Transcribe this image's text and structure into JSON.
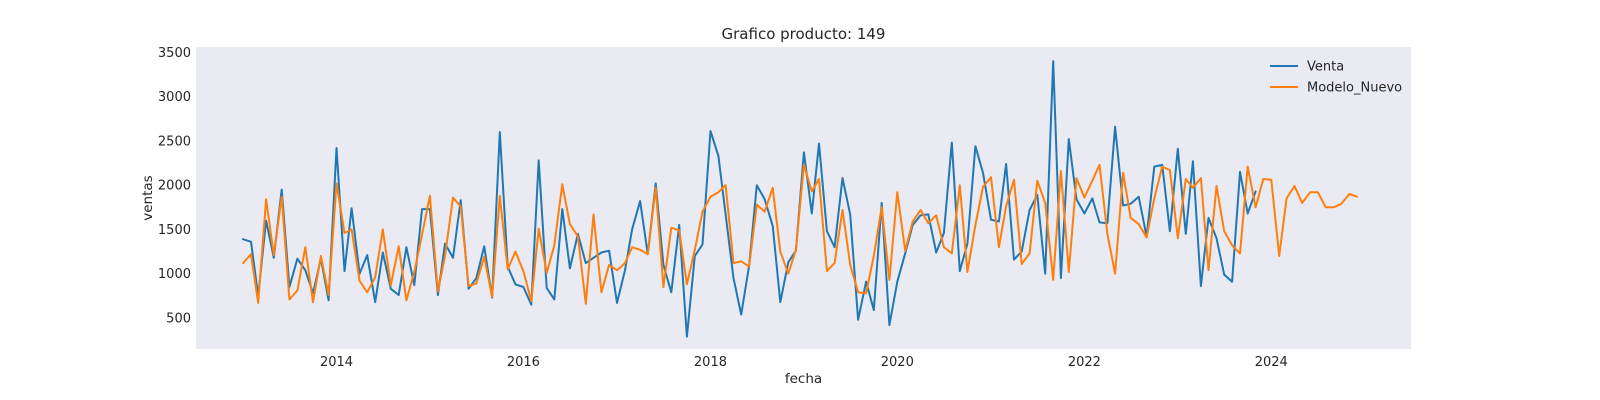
{
  "chart_data": {
    "type": "line",
    "title": "Grafico producto: 149",
    "xlabel": "fecha",
    "ylabel": "ventas",
    "xlim": [
      "2012-07-01",
      "2025-06-30"
    ],
    "ylim": [
      150,
      3560
    ],
    "x_ticks": [
      "2014",
      "2016",
      "2018",
      "2020",
      "2022",
      "2024"
    ],
    "y_ticks": [
      500,
      1000,
      1500,
      2000,
      2500,
      3000,
      3500
    ],
    "grid": false,
    "background": "#eaeaf2",
    "legend_position": "top-right",
    "series": [
      {
        "name": "Venta",
        "color": "#1f77b4",
        "start": "2013-01",
        "values": [
          1390,
          1360,
          750,
          1600,
          1180,
          1950,
          850,
          1170,
          1040,
          780,
          1170,
          700,
          2420,
          1030,
          1740,
          1000,
          1210,
          680,
          1240,
          830,
          760,
          1300,
          870,
          1730,
          1730,
          760,
          1340,
          1180,
          1830,
          830,
          950,
          1310,
          730,
          2600,
          1080,
          880,
          850,
          650,
          2280,
          840,
          710,
          1730,
          1060,
          1450,
          1120,
          1180,
          1240,
          1260,
          670,
          1040,
          1500,
          1820,
          1220,
          2020,
          1100,
          790,
          1550,
          290,
          1200,
          1330,
          2610,
          2330,
          1670,
          950,
          540,
          1090,
          2000,
          1840,
          1540,
          680,
          1130,
          1260,
          2370,
          1680,
          2470,
          1480,
          1300,
          2080,
          1670,
          480,
          910,
          590,
          1800,
          420,
          910,
          1230,
          1550,
          1660,
          1670,
          1240,
          1460,
          2480,
          1030,
          1340,
          2440,
          2140,
          1610,
          1590,
          2240,
          1160,
          1250,
          1720,
          1890,
          1000,
          3400,
          950,
          2520,
          1840,
          1680,
          1850,
          1580,
          1570,
          2660,
          1770,
          1790,
          1870,
          1420,
          2210,
          2230,
          1480,
          2410,
          1450,
          2270,
          860,
          1630,
          1400,
          990,
          910,
          2150,
          1680,
          1930
        ]
      },
      {
        "name": "Modelo_Nuevo",
        "color": "#ff7f0e",
        "start": "2013-01",
        "values": [
          1120,
          1220,
          670,
          1840,
          1210,
          1870,
          710,
          810,
          1300,
          680,
          1200,
          760,
          2020,
          1460,
          1500,
          920,
          790,
          960,
          1500,
          870,
          1310,
          700,
          1020,
          1440,
          1880,
          800,
          1200,
          1860,
          1760,
          860,
          890,
          1190,
          740,
          1880,
          1050,
          1250,
          1030,
          690,
          1510,
          1010,
          1320,
          2010,
          1560,
          1420,
          660,
          1670,
          790,
          1100,
          1040,
          1120,
          1300,
          1270,
          1220,
          1970,
          850,
          1520,
          1490,
          880,
          1270,
          1700,
          1870,
          1920,
          2000,
          1120,
          1140,
          1080,
          1780,
          1700,
          1970,
          1250,
          1000,
          1270,
          2230,
          1930,
          2070,
          1030,
          1120,
          1720,
          1100,
          790,
          780,
          1200,
          1750,
          930,
          1920,
          1260,
          1590,
          1720,
          1570,
          1660,
          1300,
          1230,
          2000,
          1020,
          1550,
          1980,
          2090,
          1300,
          1760,
          2060,
          1110,
          1230,
          2050,
          1800,
          930,
          2160,
          1020,
          2080,
          1860,
          2050,
          2230,
          1450,
          1000,
          2140,
          1630,
          1560,
          1410,
          1850,
          2210,
          2170,
          1400,
          2070,
          1970,
          2080,
          1040,
          1990,
          1480,
          1320,
          1230,
          2210,
          1750,
          2070,
          2060,
          1200,
          1850,
          1990,
          1800,
          1920,
          1920,
          1750,
          1750,
          1790,
          1900,
          1870
        ]
      }
    ]
  }
}
